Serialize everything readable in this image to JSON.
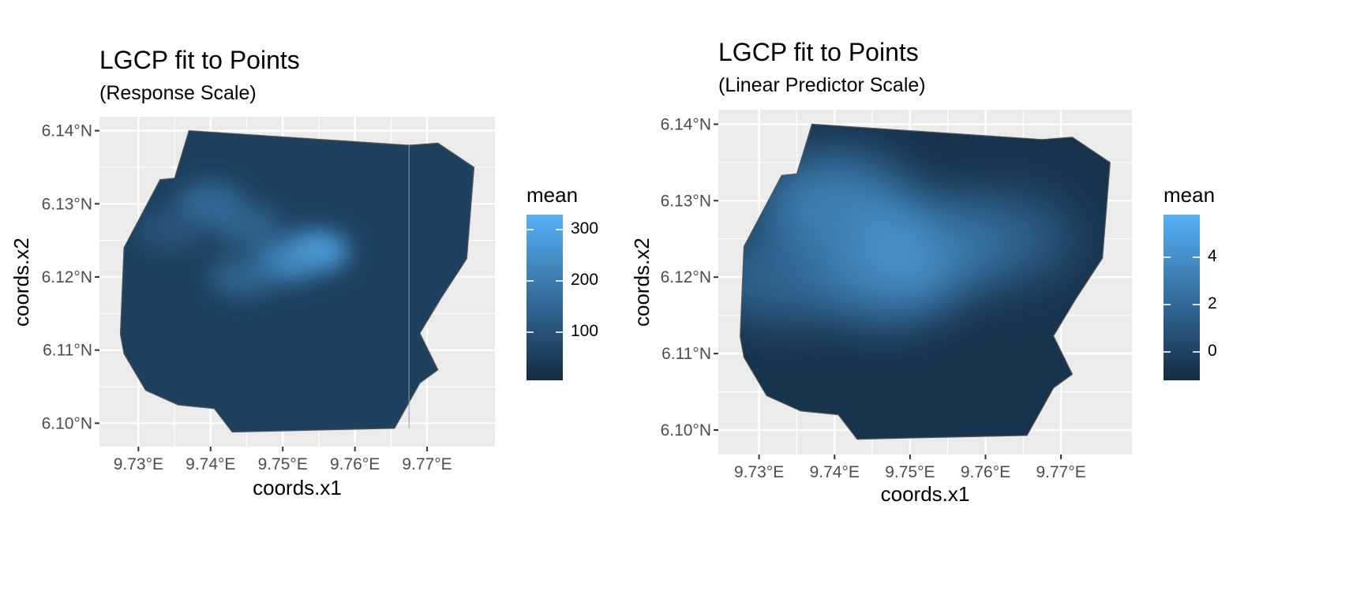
{
  "chart_data": [
    {
      "type": "heatmap",
      "title": "LGCP fit to Points",
      "subtitle": "(Response Scale)",
      "xlabel": "coords.x1",
      "ylabel": "coords.x2",
      "x_ticks": [
        "9.73°E",
        "9.74°E",
        "9.75°E",
        "9.76°E",
        "9.77°E"
      ],
      "y_ticks": [
        "6.10°N",
        "6.11°N",
        "6.12°N",
        "6.13°N",
        "6.14°N"
      ],
      "xlim": [
        9.7246,
        9.7794
      ],
      "ylim": [
        6.0968,
        6.1419
      ],
      "grid": true,
      "legend": {
        "title": "mean",
        "ticks": [
          "100",
          "200",
          "300"
        ],
        "tick_values": [
          100,
          200,
          300
        ],
        "range": [
          5,
          330
        ],
        "placement": "right"
      },
      "boundary_lon": [
        9.737,
        9.7675,
        9.7715,
        9.7765,
        9.7755,
        9.772,
        9.769,
        9.7715,
        9.769,
        9.7655,
        9.743,
        9.7405,
        9.7355,
        9.731,
        9.728,
        9.7275,
        9.728,
        9.733,
        9.735
      ],
      "boundary_lat": [
        6.14,
        6.138,
        6.1383,
        6.135,
        6.1225,
        6.1172,
        6.1123,
        6.1073,
        6.1055,
        6.0993,
        6.0988,
        6.102,
        6.1025,
        6.1045,
        6.1095,
        6.1122,
        6.124,
        6.1333,
        6.1335
      ],
      "hotspots": [
        {
          "lon": 9.74,
          "lat": 6.13,
          "value": 175
        },
        {
          "lon": 9.745,
          "lat": 6.127,
          "value": 150
        },
        {
          "lon": 9.7545,
          "lat": 6.1235,
          "value": 320
        },
        {
          "lon": 9.7505,
          "lat": 6.122,
          "value": 240
        },
        {
          "lon": 9.7445,
          "lat": 6.12,
          "value": 150
        },
        {
          "lon": 9.7345,
          "lat": 6.1265,
          "value": 110
        }
      ],
      "background_value": 55
    },
    {
      "type": "heatmap",
      "title": "LGCP fit to Points",
      "subtitle": "(Linear Predictor Scale)",
      "xlabel": "coords.x1",
      "ylabel": "coords.x2",
      "x_ticks": [
        "9.73°E",
        "9.74°E",
        "9.75°E",
        "9.76°E",
        "9.77°E"
      ],
      "y_ticks": [
        "6.10°N",
        "6.11°N",
        "6.12°N",
        "6.13°N",
        "6.14°N"
      ],
      "xlim": [
        9.7246,
        9.7794
      ],
      "ylim": [
        6.0968,
        6.1419
      ],
      "grid": true,
      "legend": {
        "title": "mean",
        "ticks": [
          "0",
          "2",
          "4"
        ],
        "tick_values": [
          0,
          2,
          4
        ],
        "range": [
          -1.2,
          5.8
        ],
        "placement": "right"
      },
      "boundary_lon": [
        9.737,
        9.7675,
        9.7715,
        9.7765,
        9.7755,
        9.772,
        9.769,
        9.7715,
        9.769,
        9.7655,
        9.743,
        9.7405,
        9.7355,
        9.731,
        9.728,
        9.7275,
        9.728,
        9.733,
        9.735
      ],
      "boundary_lat": [
        6.14,
        6.138,
        6.1383,
        6.135,
        6.1225,
        6.1172,
        6.1123,
        6.1073,
        6.1055,
        6.0993,
        6.0988,
        6.102,
        6.1025,
        6.1045,
        6.1095,
        6.1122,
        6.124,
        6.1333,
        6.1335
      ],
      "hotspots": [
        {
          "lon": 9.74,
          "lat": 6.13,
          "value": 4.8
        },
        {
          "lon": 9.7535,
          "lat": 6.124,
          "value": 5.6
        },
        {
          "lon": 9.7465,
          "lat": 6.12,
          "value": 4.6
        },
        {
          "lon": 9.733,
          "lat": 6.12,
          "value": 2.8
        },
        {
          "lon": 9.762,
          "lat": 6.125,
          "value": 2.2
        }
      ],
      "background_value": -0.8
    }
  ],
  "colors": {
    "panel_bg": "#ebebeb",
    "grid": "#ffffff",
    "low": "#132b43",
    "high": "#56b1f7",
    "boundary": "#555555"
  }
}
